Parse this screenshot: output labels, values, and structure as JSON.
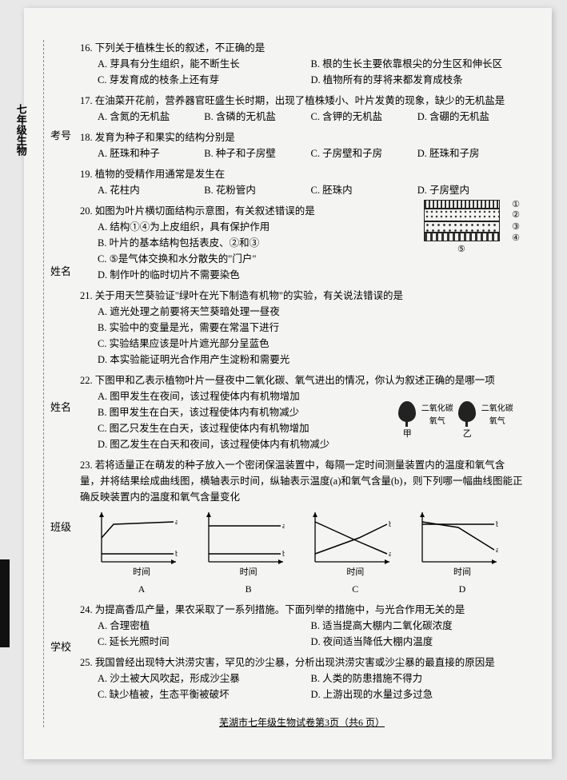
{
  "side": {
    "subject": "七年级生物",
    "lbl1": "考号",
    "lbl2": "姓名",
    "lbl3": "班级",
    "lbl4": "学校"
  },
  "q16": {
    "stem": "16. 下列关于植株生长的叙述，不正确的是",
    "A": "A. 芽具有分生组织，能不断生长",
    "B": "B. 根的生长主要依靠根尖的分生区和伸长区",
    "C": "C. 芽发育成的枝条上还有芽",
    "D": "D. 植物所有的芽将来都发育成枝条"
  },
  "q17": {
    "stem": "17. 在油菜开花前，营养器官旺盛生长时期，出现了植株矮小、叶片发黄的现象，缺少的无机盐是",
    "A": "A. 含氮的无机盐",
    "B": "B. 含磷的无机盐",
    "C": "C. 含钾的无机盐",
    "D": "D. 含硼的无机盐"
  },
  "q18": {
    "stem": "18. 发育为种子和果实的结构分别是",
    "A": "A. 胚珠和种子",
    "B": "B. 种子和子房壁",
    "C": "C. 子房壁和子房",
    "D": "D. 胚珠和子房"
  },
  "q19": {
    "stem": "19. 植物的受精作用通常是发生在",
    "A": "A. 花柱内",
    "B": "B. 花粉管内",
    "C": "C. 胚珠内",
    "D": "D. 子房壁内"
  },
  "q20": {
    "stem": "20. 如图为叶片横切面结构示意图，有关叙述错误的是",
    "A": "A. 结构①④为上皮组织，具有保护作用",
    "B": "B. 叶片的基本结构包括表皮、②和③",
    "C": "C. ⑤是气体交换和水分散失的\"门户\"",
    "D": "D. 制作叶的临时切片不需要染色",
    "labels": [
      "①",
      "②",
      "③",
      "④",
      "⑤"
    ]
  },
  "q21": {
    "stem": "21. 关于用天竺葵验证\"绿叶在光下制造有机物\"的实验，有关说法错误的是",
    "A": "A. 遮光处理之前要将天竺葵暗处理一昼夜",
    "B": "B. 实验中的变量是光，需要在常温下进行",
    "C": "C. 实验结果应该是叶片遮光部分呈蓝色",
    "D": "D. 本实验能证明光合作用产生淀粉和需要光"
  },
  "q22": {
    "stem": "22. 下图甲和乙表示植物叶片一昼夜中二氧化碳、氧气进出的情况，你认为叙述正确的是哪一项",
    "A": "A. 图甲发生在夜间，该过程使体内有机物增加",
    "B": "B. 图甲发生在白天，该过程使体内有机物减少",
    "C": "C. 图乙只发生在白天，该过程使体内有机物增加",
    "D": "D. 图乙发生在白天和夜间，该过程使体内有机物减少",
    "fig": {
      "left": "二氧化碳\n氧气",
      "right": "二氧化碳\n氧气",
      "capL": "甲",
      "capR": "乙"
    }
  },
  "q23": {
    "stem": "23. 若将适量正在萌发的种子放入一个密闭保温装置中，每隔一定时间测量装置内的温度和氧气含量，并将结果绘成曲线图，横轴表示时间，纵轴表示温度(a)和氧气含量(b)，则下列哪一幅曲线图能正确反映装置内的温度和氧气含量变化",
    "xlabel": "时间",
    "labels": [
      "A",
      "B",
      "C",
      "D"
    ],
    "charts": {
      "A": {
        "a": [
          [
            5,
            35
          ],
          [
            20,
            18
          ],
          [
            95,
            15
          ]
        ],
        "b": [
          [
            5,
            55
          ],
          [
            95,
            55
          ]
        ]
      },
      "B": {
        "a": [
          [
            5,
            20
          ],
          [
            95,
            20
          ]
        ],
        "b": [
          [
            5,
            55
          ],
          [
            95,
            55
          ]
        ]
      },
      "C": {
        "a": [
          [
            5,
            15
          ],
          [
            60,
            40
          ],
          [
            95,
            55
          ]
        ],
        "b": [
          [
            5,
            55
          ],
          [
            60,
            35
          ],
          [
            95,
            18
          ]
        ]
      },
      "D": {
        "a": [
          [
            5,
            15
          ],
          [
            50,
            22
          ],
          [
            95,
            50
          ]
        ],
        "b": [
          [
            5,
            18
          ],
          [
            95,
            18
          ]
        ]
      }
    }
  },
  "q24": {
    "stem": "24. 为提高香瓜产量，果农采取了一系列措施。下面列举的措施中，与光合作用无关的是",
    "A": "A. 合理密植",
    "B": "B. 适当提高大棚内二氧化碳浓度",
    "C": "C. 延长光照时间",
    "D": "D. 夜间适当降低大棚内温度"
  },
  "q25": {
    "stem": "25. 我国曾经出现特大洪涝灾害，罕见的沙尘暴，分析出现洪涝灾害或沙尘暴的最直接的原因是",
    "A": "A. 沙土被大风吹起，形成沙尘暴",
    "B": "B. 人类的防患措施不得力",
    "C": "C. 缺少植被，生态平衡被破坏",
    "D": "D. 上游出现的水量过多过急"
  },
  "footer": "芜湖市七年级生物试卷第3页（共6 页）"
}
